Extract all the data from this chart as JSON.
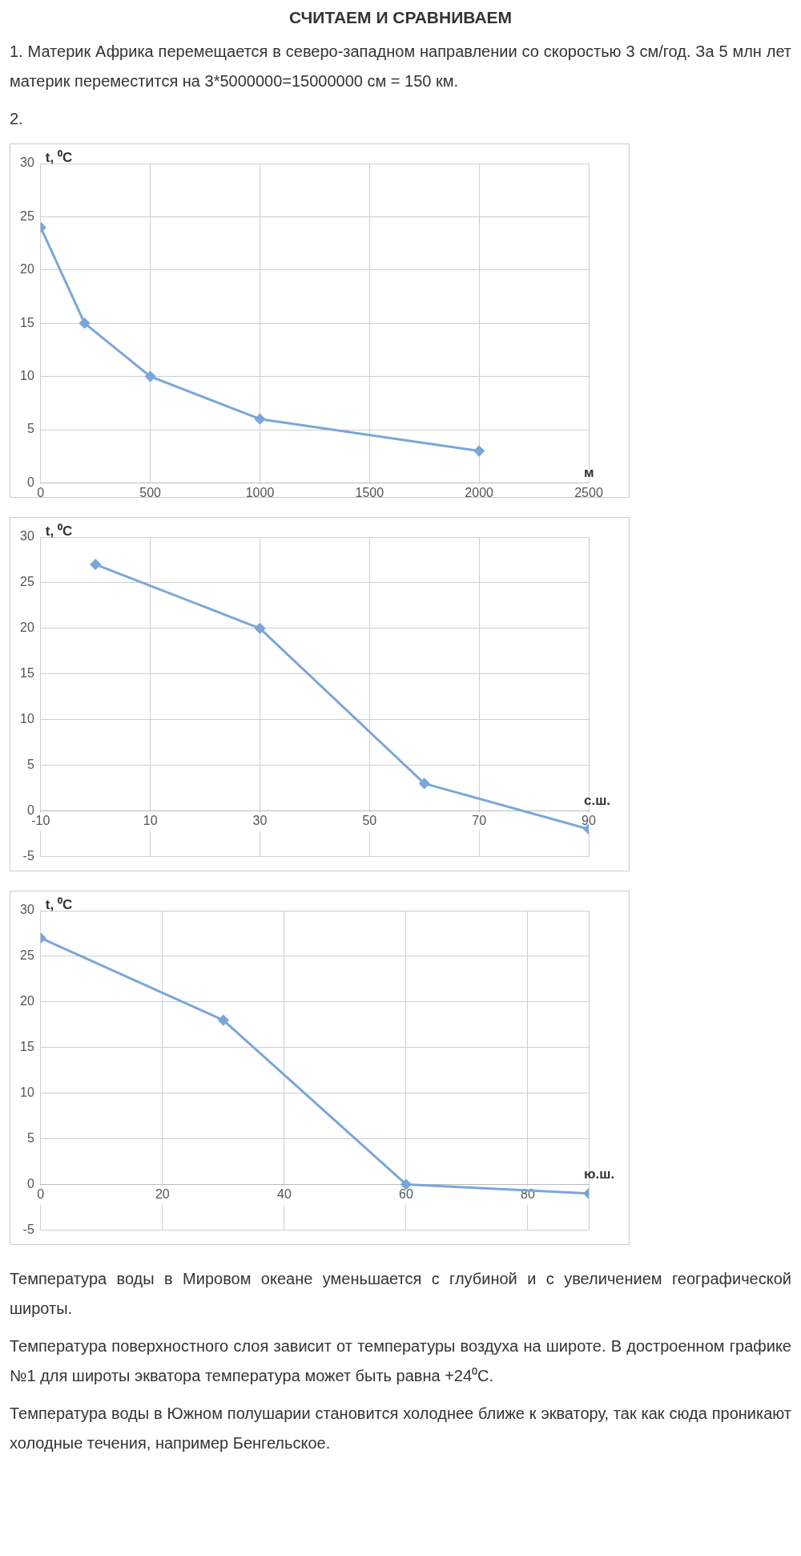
{
  "chart_data": [
    {
      "type": "other",
      "title": "СЧИТАЕМ И СРАВНИВАЕМ",
      "annotations": [
        "1. Материк Африка перемещается в северо-западном направлении со скоростью 3 см/год. За 5 млн лет материк переместится на 3*5000000=15000000 см = 150 км.",
        "2."
      ]
    },
    {
      "type": "line",
      "xlabel": "м",
      "ylabel": "t, ⁰C",
      "x": [
        0,
        200,
        500,
        1000,
        2000
      ],
      "series": [
        {
          "color": "#7aa6da",
          "values": [
            24,
            15,
            10,
            6,
            3
          ]
        }
      ],
      "xlim": [
        0,
        2500
      ],
      "xticks": [
        0,
        500,
        1000,
        1500,
        2000,
        2500
      ],
      "ylim": [
        0,
        30
      ],
      "yticks": [
        0,
        5,
        10,
        15,
        20,
        25,
        30
      ],
      "grid": true,
      "legend": false,
      "marker": "diamond",
      "line_style": "solid"
    },
    {
      "type": "line",
      "xlabel": "с.ш.",
      "ylabel": "t, ⁰C",
      "x": [
        0,
        30,
        60,
        90
      ],
      "series": [
        {
          "color": "#7aa6da",
          "values": [
            27,
            20,
            3,
            -2
          ]
        }
      ],
      "xlim": [
        -10,
        90
      ],
      "xticks": [
        -10,
        10,
        30,
        50,
        70,
        90
      ],
      "ylim": [
        -5,
        30
      ],
      "yticks": [
        -5,
        0,
        5,
        10,
        15,
        20,
        25,
        30
      ],
      "grid": true,
      "legend": false,
      "marker": "diamond",
      "line_style": "solid"
    },
    {
      "type": "line",
      "xlabel": "ю.ш.",
      "ylabel": "t, ⁰C",
      "x": [
        0,
        30,
        60,
        90
      ],
      "series": [
        {
          "color": "#7aa6da",
          "values": [
            27,
            18,
            0,
            -1
          ]
        }
      ],
      "xlim": [
        0,
        90
      ],
      "xticks": [
        0,
        20,
        40,
        60,
        80,
        {
          "value": 90,
          "label": null
        }
      ],
      "ylim": [
        -5,
        30
      ],
      "yticks": [
        -5,
        0,
        5,
        10,
        15,
        20,
        25,
        30
      ],
      "grid": true,
      "legend": false,
      "marker": "diamond",
      "line_style": "solid"
    },
    {
      "type": "other",
      "annotations": [
        "Температура воды в Мировом океане уменьшается с глубиной и с увеличением географической широты.",
        "Температура поверхностного слоя зависит от температуры воздуха на широте. В достроенном графике №1 для широты экватора температура может быть равна +24⁰C.",
        "Температура воды в Южном полушарии становится холоднее ближе к экватору, так как сюда проникают холодные течения, например Бенгельское."
      ]
    }
  ]
}
